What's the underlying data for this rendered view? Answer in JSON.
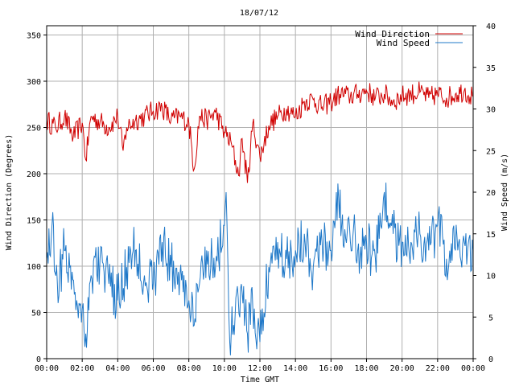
{
  "chart_data": {
    "type": "line",
    "title": "18/07/12",
    "xlabel": "Time GMT",
    "ylabel_left": "Wind Direction (Degrees)",
    "ylabel_right": "Wind Speed (m/s)",
    "x_ticks": [
      "00:00",
      "02:00",
      "04:00",
      "06:00",
      "08:00",
      "10:00",
      "12:00",
      "14:00",
      "16:00",
      "18:00",
      "20:00",
      "22:00",
      "00:00"
    ],
    "x_range_hours": [
      0,
      24
    ],
    "y_left_range": [
      0,
      360
    ],
    "y_left_ticks": [
      0,
      50,
      100,
      150,
      200,
      250,
      300,
      350
    ],
    "y_right_range": [
      0,
      40
    ],
    "y_right_ticks": [
      0,
      5,
      10,
      15,
      20,
      25,
      30,
      35,
      40
    ],
    "grid": true,
    "legend_position": "top-right",
    "series": [
      {
        "name": "Wind Direction",
        "axis": "left",
        "color": "#d00000",
        "x": [
          0,
          0.5,
          1,
          1.5,
          2,
          2.2,
          2.5,
          3,
          3.5,
          4,
          4.3,
          4.5,
          5,
          5.5,
          6,
          6.5,
          7,
          7.5,
          8,
          8.3,
          8.6,
          9,
          9.5,
          10,
          10.4,
          10.8,
          11,
          11.3,
          11.6,
          12,
          12.5,
          13,
          13.5,
          14,
          14.5,
          15,
          15.5,
          16,
          16.5,
          17,
          17.5,
          18,
          18.5,
          19,
          19.5,
          20,
          20.5,
          21,
          21.5,
          22,
          22.5,
          23,
          23.5,
          24
        ],
        "y": [
          258,
          250,
          262,
          240,
          255,
          215,
          262,
          256,
          250,
          262,
          225,
          250,
          258,
          262,
          268,
          272,
          258,
          262,
          255,
          205,
          262,
          258,
          266,
          245,
          232,
          198,
          238,
          190,
          255,
          218,
          252,
          262,
          270,
          262,
          278,
          280,
          272,
          278,
          286,
          284,
          286,
          290,
          282,
          286,
          278,
          284,
          286,
          288,
          282,
          286,
          282,
          286,
          290,
          283
        ]
      },
      {
        "name": "Wind Speed",
        "axis": "right",
        "color": "#1f78c8",
        "x": [
          0,
          0.3,
          0.6,
          1,
          1.3,
          1.6,
          2,
          2.2,
          2.5,
          3,
          3.5,
          4,
          4.5,
          5,
          5.5,
          6,
          6.5,
          7,
          7.5,
          8,
          8.3,
          8.6,
          9,
          9.5,
          10,
          10.1,
          10.3,
          10.6,
          11,
          11.3,
          11.6,
          12,
          12.5,
          13,
          13.5,
          14,
          14.5,
          15,
          15.5,
          16,
          16.3,
          16.6,
          17,
          17.5,
          18,
          18.5,
          18.8,
          19,
          19.5,
          20,
          20.5,
          21,
          21.5,
          22,
          22.5,
          23,
          23.5,
          24
        ],
        "y": [
          12,
          16,
          9,
          13,
          11,
          8,
          6,
          3,
          10,
          12,
          9,
          7,
          11,
          13,
          10,
          9,
          14,
          11,
          10,
          7,
          4,
          9,
          13,
          11,
          16,
          20,
          2,
          5,
          8,
          3,
          6,
          2,
          11,
          14,
          12,
          13,
          15,
          11,
          14,
          13,
          20,
          16,
          17,
          13,
          14,
          12,
          16,
          20,
          15,
          14,
          14,
          15,
          13,
          16,
          12,
          13,
          14,
          13
        ]
      }
    ]
  }
}
